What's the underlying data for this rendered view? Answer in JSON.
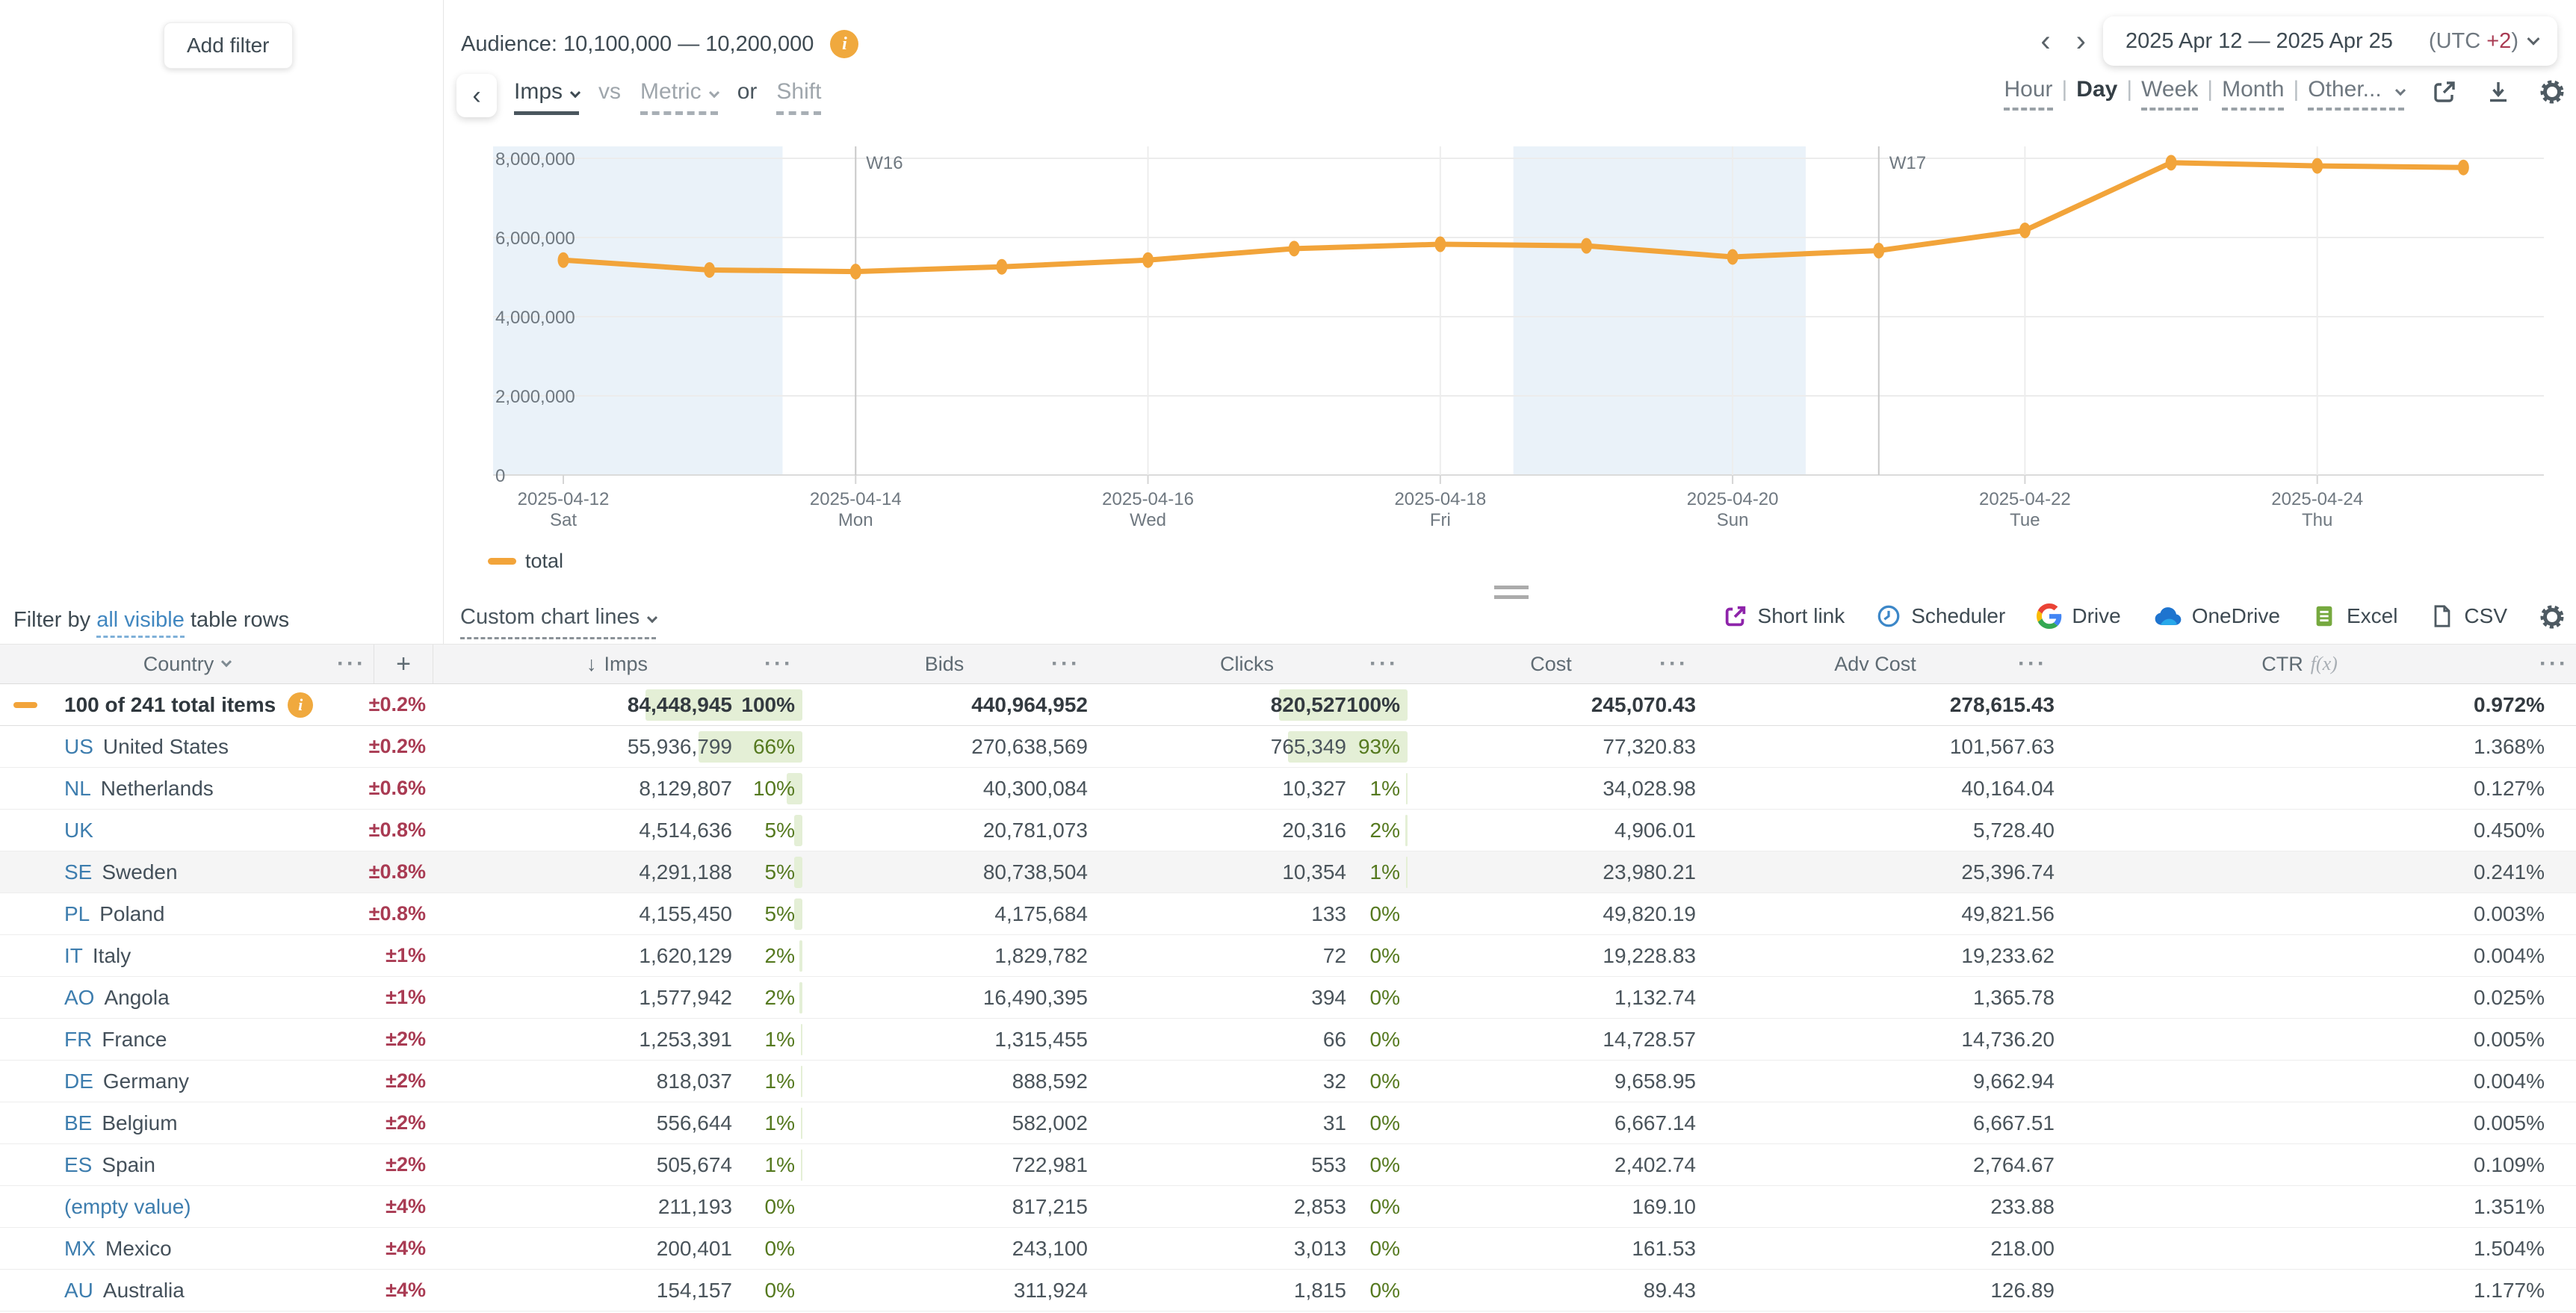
{
  "colors": {
    "accent_orange": "#F2A43A",
    "crimson": "#A93B53",
    "green_text": "#55791F",
    "green_bar": "#E4EFD6",
    "link_blue": "#3D7DAE",
    "weekend_band": "#EAF2F9"
  },
  "filters": {
    "add_filter": "Add filter",
    "filter_by_prefix": "Filter by",
    "filter_by_link": "all visible",
    "filter_by_suffix": "table rows"
  },
  "header": {
    "audience_label": "Audience: 10,100,000 — 10,200,000",
    "date_range": "2025 Apr 12 — 2025 Apr 25",
    "utc_prefix": "(UTC ",
    "utc_value": "+2",
    "utc_suffix": ")",
    "prev_icon": "‹",
    "next_icon": "›",
    "metric_primary": "Imps",
    "vs_label": "vs",
    "metric_secondary": "Metric",
    "or_label": "or",
    "shift_label": "Shift",
    "granularity": [
      "Hour",
      "Day",
      "Week",
      "Month",
      "Other..."
    ],
    "granularity_selected": "Day"
  },
  "toolbar": {
    "custom_chart_lines": "Custom chart lines",
    "exports": [
      "Short link",
      "Scheduler",
      "Drive",
      "OneDrive",
      "Excel",
      "CSV"
    ]
  },
  "chart_data": {
    "type": "line",
    "x": [
      "2025-04-12",
      "2025-04-13",
      "2025-04-14",
      "2025-04-15",
      "2025-04-16",
      "2025-04-17",
      "2025-04-18",
      "2025-04-19",
      "2025-04-20",
      "2025-04-21",
      "2025-04-22",
      "2025-04-23",
      "2025-04-24",
      "2025-04-25"
    ],
    "weekdays": [
      "Sat",
      "Sun",
      "Mon",
      "Tue",
      "Wed",
      "Thu",
      "Fri",
      "Sat",
      "Sun",
      "Mon",
      "Tue",
      "Wed",
      "Thu",
      "Fri"
    ],
    "series": [
      {
        "name": "total",
        "color": "#F2A43A",
        "values": [
          5430000,
          5180000,
          5140000,
          5260000,
          5430000,
          5720000,
          5830000,
          5790000,
          5510000,
          5670000,
          6180000,
          7890000,
          7810000,
          7770000
        ]
      }
    ],
    "ylim": [
      0,
      8000000
    ],
    "yticks": [
      0,
      2000000,
      4000000,
      6000000,
      8000000
    ],
    "x_tick_every": 2,
    "week_markers": [
      {
        "label": "W16",
        "date": "2025-04-14"
      },
      {
        "label": "W17",
        "date": "2025-04-21"
      }
    ],
    "weekend_bands": [
      [
        "2025-04-12",
        "2025-04-13"
      ],
      [
        "2025-04-19",
        "2025-04-20"
      ]
    ],
    "legend": [
      "total"
    ],
    "grid": true,
    "legend_position": "bottom-left"
  },
  "table": {
    "headers": {
      "country": "Country",
      "add": "+",
      "imps": "Imps",
      "sort_icon": "↓",
      "bids": "Bids",
      "clicks": "Clicks",
      "cost": "Cost",
      "adv_cost": "Adv Cost",
      "ctr": "CTR",
      "ctr_fx": "f(x)",
      "menu_dots": "···"
    },
    "total_row": {
      "label": "100 of 241 total items",
      "delta": "±0.2%",
      "imps": "84,448,945",
      "imps_pct": "100%",
      "imps_bar": 100,
      "bids": "440,964,952",
      "clicks": "820,527",
      "clicks_pct": "100%",
      "clicks_bar": 100,
      "cost": "245,070.43",
      "adv_cost": "278,615.43",
      "ctr": "0.972%"
    },
    "rows": [
      {
        "code": "US",
        "name": "United States",
        "delta": "±0.2%",
        "imps": "55,936,799",
        "imps_pct": "66%",
        "bids": "270,638,569",
        "clicks": "765,349",
        "clicks_pct": "93%",
        "cost": "77,320.83",
        "adv_cost": "101,567.63",
        "ctr": "1.368%"
      },
      {
        "code": "NL",
        "name": "Netherlands",
        "delta": "±0.6%",
        "imps": "8,129,807",
        "imps_pct": "10%",
        "bids": "40,300,084",
        "clicks": "10,327",
        "clicks_pct": "1%",
        "cost": "34,028.98",
        "adv_cost": "40,164.04",
        "ctr": "0.127%"
      },
      {
        "code": "UK",
        "name": "",
        "delta": "±0.8%",
        "imps": "4,514,636",
        "imps_pct": "5%",
        "bids": "20,781,073",
        "clicks": "20,316",
        "clicks_pct": "2%",
        "cost": "4,906.01",
        "adv_cost": "5,728.40",
        "ctr": "0.450%"
      },
      {
        "code": "SE",
        "name": "Sweden",
        "delta": "±0.8%",
        "imps": "4,291,188",
        "imps_pct": "5%",
        "bids": "80,738,504",
        "clicks": "10,354",
        "clicks_pct": "1%",
        "cost": "23,980.21",
        "adv_cost": "25,396.74",
        "ctr": "0.241%",
        "highlight": true
      },
      {
        "code": "PL",
        "name": "Poland",
        "delta": "±0.8%",
        "imps": "4,155,450",
        "imps_pct": "5%",
        "bids": "4,175,684",
        "clicks": "133",
        "clicks_pct": "0%",
        "cost": "49,820.19",
        "adv_cost": "49,821.56",
        "ctr": "0.003%"
      },
      {
        "code": "IT",
        "name": "Italy",
        "delta": "±1%",
        "imps": "1,620,129",
        "imps_pct": "2%",
        "bids": "1,829,782",
        "clicks": "72",
        "clicks_pct": "0%",
        "cost": "19,228.83",
        "adv_cost": "19,233.62",
        "ctr": "0.004%"
      },
      {
        "code": "AO",
        "name": "Angola",
        "delta": "±1%",
        "imps": "1,577,942",
        "imps_pct": "2%",
        "bids": "16,490,395",
        "clicks": "394",
        "clicks_pct": "0%",
        "cost": "1,132.74",
        "adv_cost": "1,365.78",
        "ctr": "0.025%"
      },
      {
        "code": "FR",
        "name": "France",
        "delta": "±2%",
        "imps": "1,253,391",
        "imps_pct": "1%",
        "bids": "1,315,455",
        "clicks": "66",
        "clicks_pct": "0%",
        "cost": "14,728.57",
        "adv_cost": "14,736.20",
        "ctr": "0.005%"
      },
      {
        "code": "DE",
        "name": "Germany",
        "delta": "±2%",
        "imps": "818,037",
        "imps_pct": "1%",
        "bids": "888,592",
        "clicks": "32",
        "clicks_pct": "0%",
        "cost": "9,658.95",
        "adv_cost": "9,662.94",
        "ctr": "0.004%"
      },
      {
        "code": "BE",
        "name": "Belgium",
        "delta": "±2%",
        "imps": "556,644",
        "imps_pct": "1%",
        "bids": "582,002",
        "clicks": "31",
        "clicks_pct": "0%",
        "cost": "6,667.14",
        "adv_cost": "6,667.51",
        "ctr": "0.005%"
      },
      {
        "code": "ES",
        "name": "Spain",
        "delta": "±2%",
        "imps": "505,674",
        "imps_pct": "1%",
        "bids": "722,981",
        "clicks": "553",
        "clicks_pct": "0%",
        "cost": "2,402.74",
        "adv_cost": "2,764.67",
        "ctr": "0.109%"
      },
      {
        "code": "",
        "name": "(empty value)",
        "empty": true,
        "delta": "±4%",
        "imps": "211,193",
        "imps_pct": "0%",
        "bids": "817,215",
        "clicks": "2,853",
        "clicks_pct": "0%",
        "cost": "169.10",
        "adv_cost": "233.88",
        "ctr": "1.351%"
      },
      {
        "code": "MX",
        "name": "Mexico",
        "delta": "±4%",
        "imps": "200,401",
        "imps_pct": "0%",
        "bids": "243,100",
        "clicks": "3,013",
        "clicks_pct": "0%",
        "cost": "161.53",
        "adv_cost": "218.00",
        "ctr": "1.504%"
      },
      {
        "code": "AU",
        "name": "Australia",
        "delta": "±4%",
        "imps": "154,157",
        "imps_pct": "0%",
        "bids": "311,924",
        "clicks": "1,815",
        "clicks_pct": "0%",
        "cost": "89.43",
        "adv_cost": "126.89",
        "ctr": "1.177%"
      }
    ]
  }
}
